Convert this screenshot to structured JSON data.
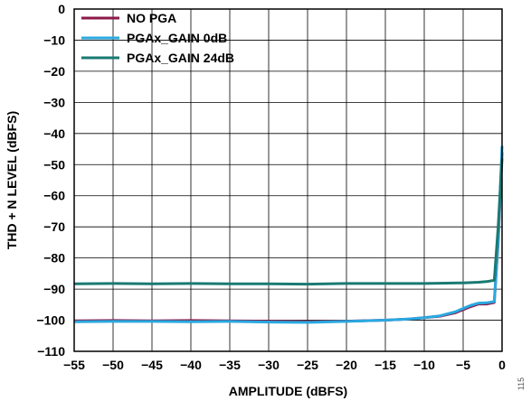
{
  "figure_id": "115",
  "chart_data": {
    "type": "line",
    "title": "",
    "xlabel": "AMPLITUDE (dBFS)",
    "ylabel": "THD + N LEVEL (dBFS)",
    "xlim": [
      -55,
      0
    ],
    "ylim": [
      -110,
      0
    ],
    "xticks": [
      -55,
      -50,
      -45,
      -40,
      -35,
      -30,
      -25,
      -20,
      -15,
      -10,
      -5,
      0
    ],
    "yticks": [
      0,
      -10,
      -20,
      -30,
      -40,
      -50,
      -60,
      -70,
      -80,
      -90,
      -100,
      -110
    ],
    "grid": true,
    "legend_position": "top-left",
    "series": [
      {
        "name": "NO PGA",
        "color": "#8b1a4a",
        "x": [
          -55,
          -50,
          -45,
          -40,
          -35,
          -30,
          -25,
          -20,
          -15,
          -12,
          -10,
          -8,
          -6,
          -5,
          -4,
          -3,
          -2,
          -1,
          -0.5,
          0
        ],
        "y": [
          -100.2,
          -100.1,
          -100.2,
          -100.1,
          -100.2,
          -100.3,
          -100.5,
          -100.3,
          -100.0,
          -99.6,
          -99.2,
          -98.7,
          -97.6,
          -96.6,
          -95.6,
          -94.8,
          -94.8,
          -94.3,
          -75,
          -46
        ]
      },
      {
        "name": "PGAx_GAIN 0dB",
        "color": "#29a9e0",
        "x": [
          -55,
          -50,
          -45,
          -40,
          -35,
          -30,
          -25,
          -20,
          -15,
          -12,
          -10,
          -8,
          -6,
          -5,
          -4,
          -3,
          -2,
          -1,
          -0.5,
          0
        ],
        "y": [
          -100.5,
          -100.4,
          -100.4,
          -100.5,
          -100.4,
          -100.6,
          -100.7,
          -100.4,
          -100.0,
          -99.6,
          -99.2,
          -98.6,
          -97.3,
          -96.2,
          -95.2,
          -94.5,
          -94.4,
          -94.0,
          -74,
          -44
        ]
      },
      {
        "name": "PGAx_GAIN 24dB",
        "color": "#1a7a72",
        "x": [
          -55,
          -50,
          -45,
          -40,
          -35,
          -30,
          -25,
          -20,
          -15,
          -10,
          -5,
          -3,
          -2,
          -1,
          -0.5,
          0
        ],
        "y": [
          -88.3,
          -88.2,
          -88.3,
          -88.2,
          -88.3,
          -88.3,
          -88.4,
          -88.2,
          -88.2,
          -88.2,
          -88.0,
          -87.8,
          -87.6,
          -87.2,
          -70,
          -48
        ]
      }
    ]
  }
}
